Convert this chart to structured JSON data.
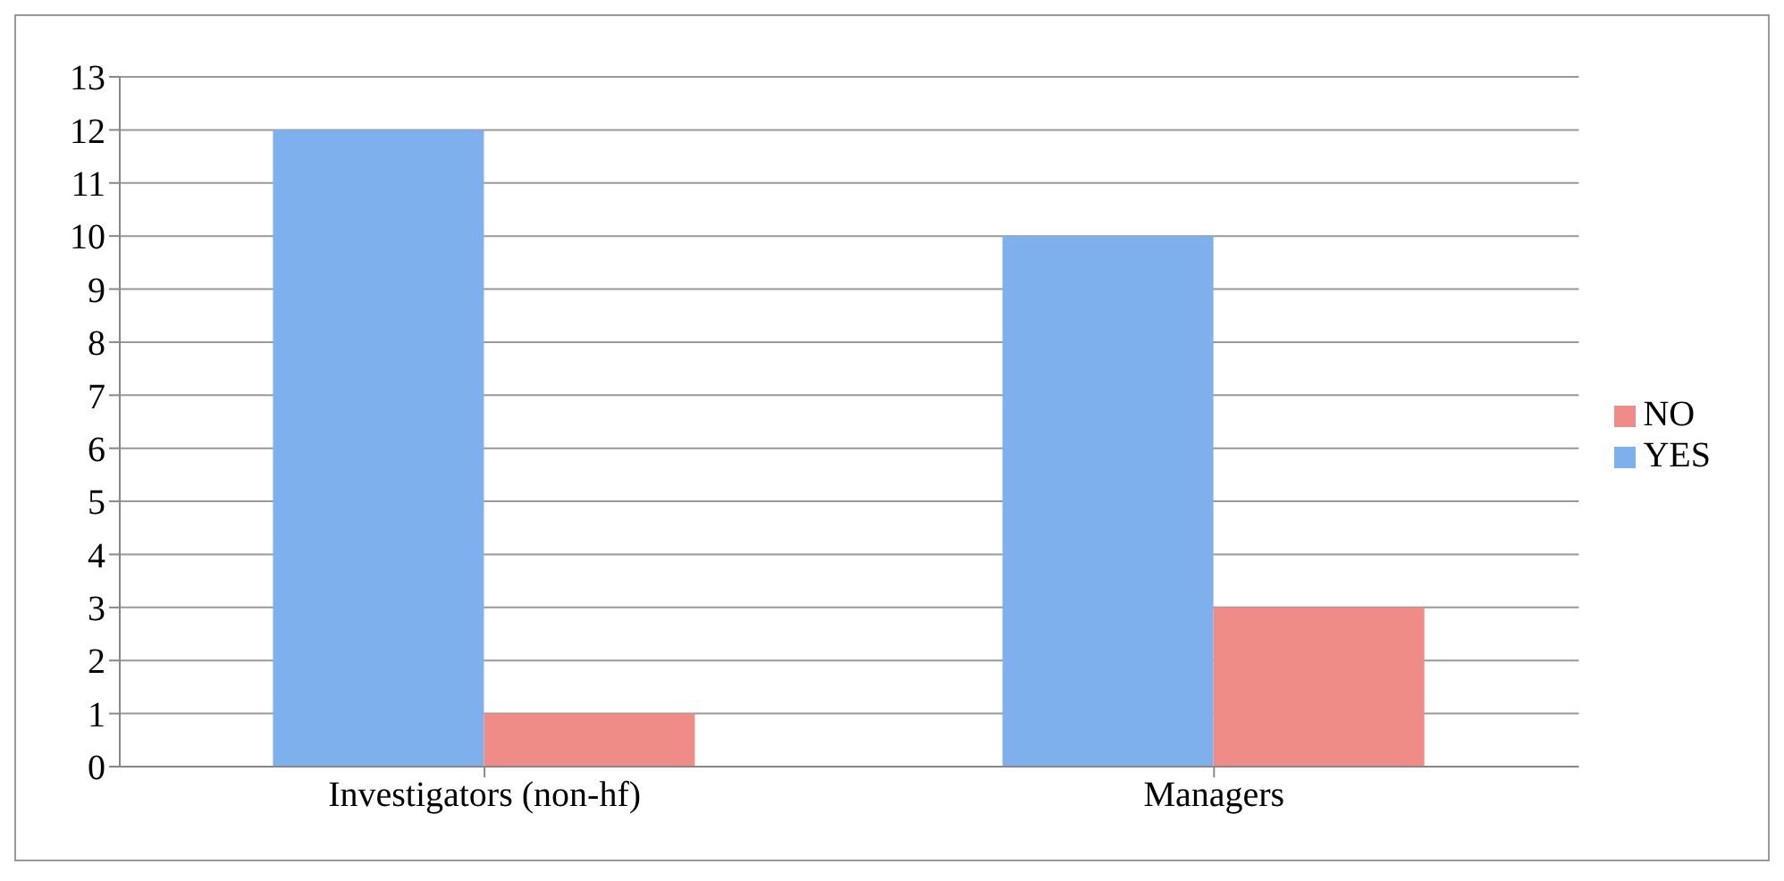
{
  "chart_data": {
    "type": "bar",
    "categories": [
      "Investigators (non-hf)",
      "Managers"
    ],
    "series": [
      {
        "name": "YES",
        "color": "#7eb0ee",
        "values": [
          12,
          10
        ]
      },
      {
        "name": "NO",
        "color": "#f08c88",
        "values": [
          1,
          3
        ]
      }
    ],
    "ylim": [
      0,
      13
    ],
    "yticks": [
      0,
      1,
      2,
      3,
      4,
      5,
      6,
      7,
      8,
      9,
      10,
      11,
      12,
      13
    ],
    "grid": "y",
    "legend": "right"
  }
}
